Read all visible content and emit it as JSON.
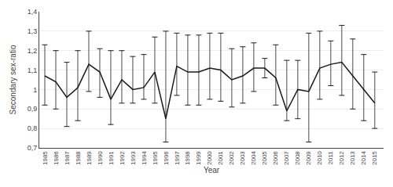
{
  "chart_data": {
    "type": "line",
    "xlabel": "Year",
    "ylabel": "Secondary sex-ratio",
    "x": [
      1985,
      1986,
      1987,
      1988,
      1989,
      1990,
      1991,
      1992,
      1993,
      1994,
      1995,
      1996,
      1997,
      1998,
      1999,
      2000,
      2001,
      2002,
      2003,
      2004,
      2005,
      2006,
      2007,
      2008,
      2009,
      2010,
      2011,
      2012,
      2013,
      2014,
      2015
    ],
    "values": [
      1.07,
      1.04,
      0.96,
      1.01,
      1.13,
      1.09,
      0.95,
      1.05,
      1.0,
      1.01,
      1.09,
      0.85,
      1.12,
      1.09,
      1.09,
      1.11,
      1.1,
      1.05,
      1.07,
      1.11,
      1.11,
      1.06,
      0.89,
      1.0,
      0.99,
      1.11,
      1.13,
      1.14,
      1.07,
      1.0,
      0.93
    ],
    "ci_upper": [
      1.23,
      1.2,
      1.14,
      1.2,
      1.3,
      1.21,
      1.2,
      1.2,
      1.17,
      1.18,
      1.27,
      1.3,
      1.29,
      1.28,
      1.28,
      1.29,
      1.29,
      1.21,
      1.22,
      1.24,
      1.16,
      1.23,
      1.15,
      1.15,
      1.29,
      1.3,
      1.25,
      1.33,
      1.26,
      1.18,
      1.09
    ],
    "ci_lower": [
      0.92,
      0.9,
      0.81,
      0.84,
      0.99,
      0.96,
      0.82,
      0.93,
      0.93,
      0.95,
      0.93,
      0.73,
      0.97,
      0.92,
      0.92,
      0.95,
      0.94,
      0.91,
      0.93,
      0.99,
      1.06,
      0.92,
      0.84,
      0.85,
      0.73,
      0.95,
      1.02,
      0.97,
      0.9,
      0.84,
      0.8
    ],
    "color": "#1a1a1a",
    "xlim": [
      1984.5,
      2015.8
    ],
    "xticks": [
      1985,
      1986,
      1987,
      1988,
      1989,
      1990,
      1991,
      1992,
      1993,
      1994,
      1995,
      1996,
      1997,
      1998,
      1999,
      2000,
      2001,
      2002,
      2003,
      2004,
      2005,
      2006,
      2007,
      2008,
      2009,
      2010,
      2011,
      2012,
      2013,
      2014,
      2015
    ],
    "ylim": [
      0.7,
      1.4
    ],
    "yticks": [
      {
        "value": 0.7,
        "label": "0,7"
      },
      {
        "value": 0.8,
        "label": "0,8"
      },
      {
        "value": 0.9,
        "label": "0,9"
      },
      1,
      {
        "value": 1.1,
        "label": "1,1"
      },
      {
        "value": 1.2,
        "label": "1,2"
      },
      {
        "value": 1.3,
        "label": "1,3"
      },
      {
        "value": 1.4,
        "label": "1,4"
      }
    ],
    "grid": true
  }
}
